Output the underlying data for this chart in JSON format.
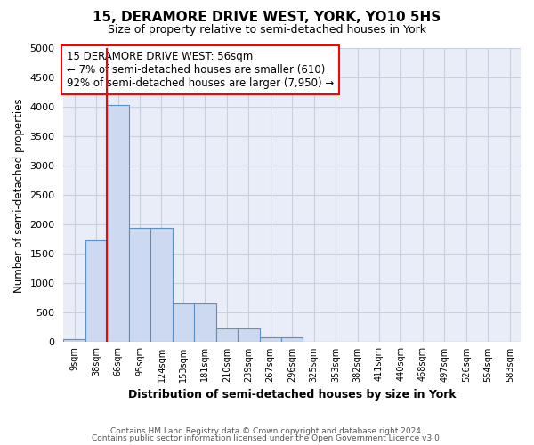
{
  "title": "15, DERAMORE DRIVE WEST, YORK, YO10 5HS",
  "subtitle": "Size of property relative to semi-detached houses in York",
  "xlabel": "Distribution of semi-detached houses by size in York",
  "ylabel": "Number of semi-detached properties",
  "footnote1": "Contains HM Land Registry data © Crown copyright and database right 2024.",
  "footnote2": "Contains public sector information licensed under the Open Government Licence v3.0.",
  "bin_labels": [
    "9sqm",
    "38sqm",
    "66sqm",
    "95sqm",
    "124sqm",
    "153sqm",
    "181sqm",
    "210sqm",
    "239sqm",
    "267sqm",
    "296sqm",
    "325sqm",
    "353sqm",
    "382sqm",
    "411sqm",
    "440sqm",
    "468sqm",
    "497sqm",
    "526sqm",
    "554sqm",
    "583sqm"
  ],
  "bar_values": [
    50,
    1730,
    4030,
    1950,
    1950,
    660,
    660,
    240,
    240,
    80,
    80,
    0,
    0,
    0,
    0,
    0,
    0,
    0,
    0,
    0,
    0
  ],
  "bar_color": "#ccd9f0",
  "bar_edge_color": "#5b8fc9",
  "red_line_x": 2,
  "annotation_text": "15 DERAMORE DRIVE WEST: 56sqm\n← 7% of semi-detached houses are smaller (610)\n92% of semi-detached houses are larger (7,950) →",
  "annotation_box_color": "white",
  "annotation_box_edge": "red",
  "ylim": [
    0,
    5000
  ],
  "yticks": [
    0,
    500,
    1000,
    1500,
    2000,
    2500,
    3000,
    3500,
    4000,
    4500,
    5000
  ],
  "grid_color": "#c8d0e0",
  "background_color": "#e8edf8",
  "fig_background": "#ffffff"
}
